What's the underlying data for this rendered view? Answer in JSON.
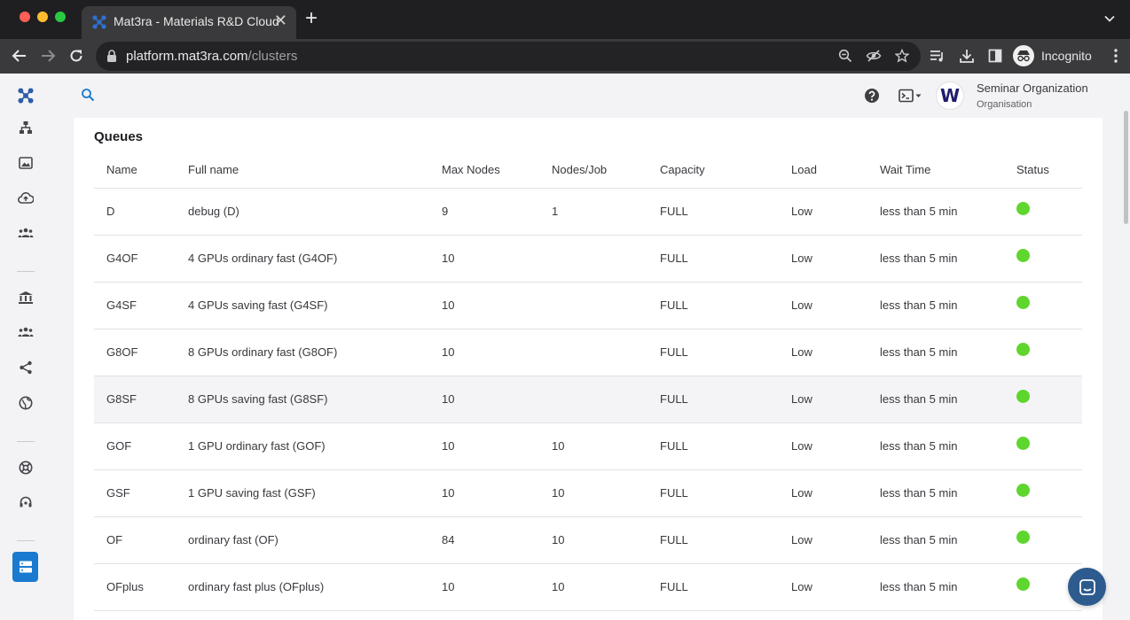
{
  "browser": {
    "tab_title": "Mat3ra - Materials R&D Cloud",
    "url_host": "platform.mat3ra.com",
    "url_path": "/clusters",
    "profile_label": "Incognito"
  },
  "header": {
    "org_name": "Seminar Organization",
    "org_type": "Organisation",
    "org_initial": "W"
  },
  "queues": {
    "title": "Queues",
    "columns": [
      "Name",
      "Full name",
      "Max Nodes",
      "Nodes/Job",
      "Capacity",
      "Load",
      "Wait Time",
      "Status"
    ],
    "rows": [
      {
        "name": "D",
        "full_name": "debug (D)",
        "max_nodes": "9",
        "nodes_job": "1",
        "capacity": "FULL",
        "load": "Low",
        "wait": "less than 5 min"
      },
      {
        "name": "G4OF",
        "full_name": "4 GPUs ordinary fast (G4OF)",
        "max_nodes": "10",
        "nodes_job": "",
        "capacity": "FULL",
        "load": "Low",
        "wait": "less than 5 min"
      },
      {
        "name": "G4SF",
        "full_name": "4 GPUs saving fast (G4SF)",
        "max_nodes": "10",
        "nodes_job": "",
        "capacity": "FULL",
        "load": "Low",
        "wait": "less than 5 min"
      },
      {
        "name": "G8OF",
        "full_name": "8 GPUs ordinary fast (G8OF)",
        "max_nodes": "10",
        "nodes_job": "",
        "capacity": "FULL",
        "load": "Low",
        "wait": "less than 5 min"
      },
      {
        "name": "G8SF",
        "full_name": "8 GPUs saving fast (G8SF)",
        "max_nodes": "10",
        "nodes_job": "",
        "capacity": "FULL",
        "load": "Low",
        "wait": "less than 5 min"
      },
      {
        "name": "GOF",
        "full_name": "1 GPU ordinary fast (GOF)",
        "max_nodes": "10",
        "nodes_job": "10",
        "capacity": "FULL",
        "load": "Low",
        "wait": "less than 5 min"
      },
      {
        "name": "GSF",
        "full_name": "1 GPU saving fast (GSF)",
        "max_nodes": "10",
        "nodes_job": "10",
        "capacity": "FULL",
        "load": "Low",
        "wait": "less than 5 min"
      },
      {
        "name": "OF",
        "full_name": "ordinary fast (OF)",
        "max_nodes": "84",
        "nodes_job": "10",
        "capacity": "FULL",
        "load": "Low",
        "wait": "less than 5 min"
      },
      {
        "name": "OFplus",
        "full_name": "ordinary fast plus (OFplus)",
        "max_nodes": "10",
        "nodes_job": "10",
        "capacity": "FULL",
        "load": "Low",
        "wait": "less than 5 min"
      }
    ]
  },
  "icons": {
    "sidebar": [
      "mat3ra-logo-icon",
      "hierarchy-icon",
      "image-icon",
      "cloud-upload-icon",
      "group-icon",
      "bank-icon",
      "team-icon",
      "share-icon",
      "globe-icon",
      "support-icon",
      "headset-icon",
      "clusters-icon"
    ]
  },
  "colors": {
    "accent": "#1a7acf",
    "status_ok": "#5ed62d",
    "chat": "#2d5b8e"
  }
}
